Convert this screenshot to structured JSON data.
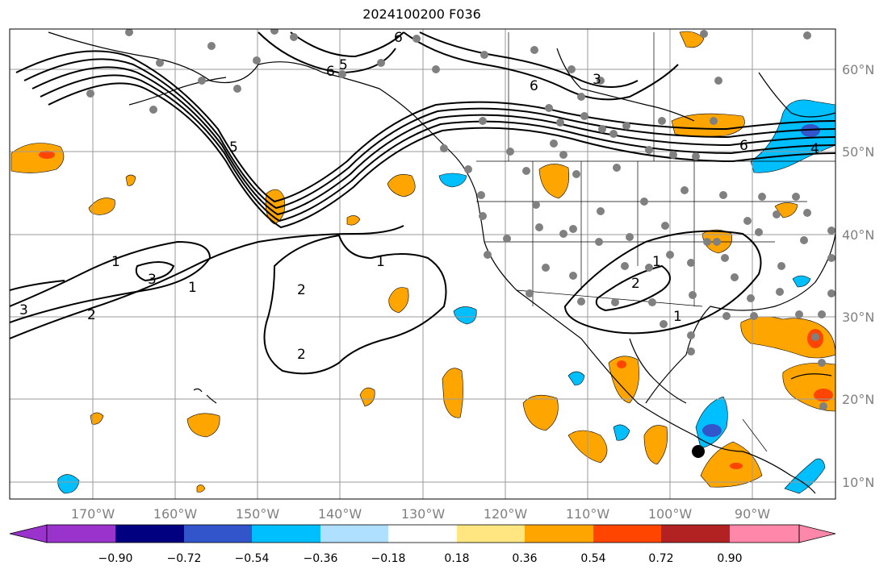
{
  "title": "2024100200 F036",
  "map": {
    "lon_labels": [
      "170°W",
      "160°W",
      "150°W",
      "140°W",
      "130°W",
      "120°W",
      "110°W",
      "100°W",
      "90°W"
    ],
    "lat_labels": [
      "60°N",
      "50°N",
      "40°N",
      "30°N",
      "20°N",
      "10°N"
    ],
    "contour_labels": [
      "1",
      "1",
      "1",
      "1",
      "1",
      "2",
      "2",
      "2",
      "2",
      "3",
      "3",
      "3",
      "4",
      "5",
      "5",
      "6",
      "6",
      "6",
      "6"
    ],
    "colors": {
      "grid": "#9a9a9a",
      "contour": "#000000",
      "station": "#808080",
      "marker": "#000000"
    }
  },
  "colorbar": {
    "tick_labels": [
      "−0.90",
      "−0.72",
      "−0.54",
      "−0.36",
      "−0.18",
      "0.18",
      "0.36",
      "0.54",
      "0.72",
      "0.90"
    ],
    "colors": [
      "#9933cc",
      "#000080",
      "#3355cc",
      "#00bfff",
      "#b0e0ff",
      "#ffffff",
      "#ffe680",
      "#ffa500",
      "#ff4500",
      "#b22222",
      "#ff88aa"
    ]
  }
}
